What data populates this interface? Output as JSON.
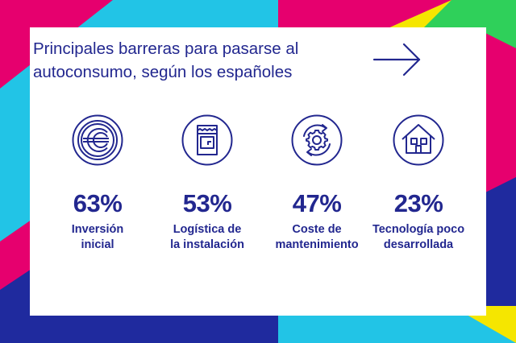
{
  "title_lines": [
    "Principales barreras para pasarse al",
    "autoconsumo, según los españoles"
  ],
  "colors": {
    "accent": "#22278f",
    "card": "#ffffff",
    "background": [
      "#22c4e6",
      "#f5e600",
      "#1f2a9e",
      "#e6006e",
      "#2fd05a"
    ]
  },
  "stats": [
    {
      "icon": "euro-coin-icon",
      "value": "63%",
      "label_lines": [
        "Inversión",
        "inicial"
      ]
    },
    {
      "icon": "clipboard-blueprint-icon",
      "value": "53%",
      "label_lines": [
        "Logística de",
        "la instalación"
      ]
    },
    {
      "icon": "gear-cycle-icon",
      "value": "47%",
      "label_lines": [
        "Coste de",
        "mantenimiento"
      ]
    },
    {
      "icon": "house-icon",
      "value": "23%",
      "label_lines": [
        "Tecnología poco",
        "desarrollada"
      ]
    }
  ]
}
